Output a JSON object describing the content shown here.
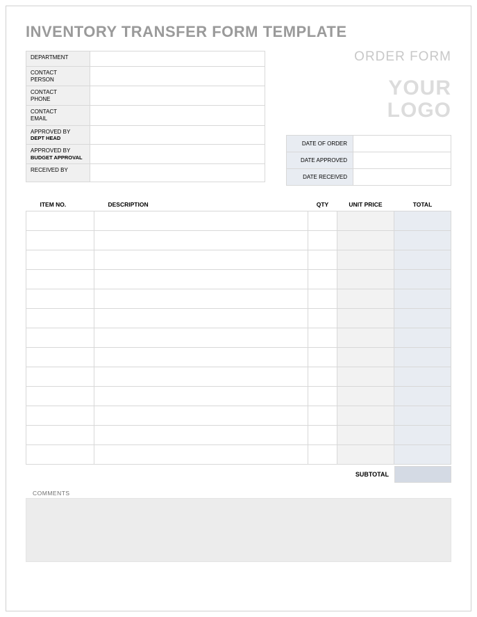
{
  "title": "INVENTORY TRANSFER FORM TEMPLATE",
  "header": {
    "order_form_label": "ORDER FORM",
    "logo_line1": "YOUR",
    "logo_line2": "LOGO"
  },
  "info": {
    "rows": [
      {
        "label": "DEPARTMENT",
        "sub": "",
        "value": "",
        "height": "h1"
      },
      {
        "label": "CONTACT",
        "sub": "PERSON",
        "value": "",
        "height": "h2",
        "sub_plain": true
      },
      {
        "label": "CONTACT",
        "sub": "PHONE",
        "value": "",
        "height": "h2",
        "sub_plain": true
      },
      {
        "label": "CONTACT",
        "sub": "EMAIL",
        "value": "",
        "height": "h2",
        "sub_plain": true
      },
      {
        "label": "APPROVED BY",
        "sub": "DEPT HEAD",
        "value": "",
        "height": "h2"
      },
      {
        "label": "APPROVED BY",
        "sub": "BUDGET APPROVAL",
        "value": "",
        "height": "h2"
      },
      {
        "label": "RECEIVED BY",
        "sub": "",
        "value": "",
        "height": "h2"
      }
    ]
  },
  "dates": {
    "rows": [
      {
        "label": "DATE OF ORDER",
        "value": ""
      },
      {
        "label": "DATE APPROVED",
        "value": ""
      },
      {
        "label": "DATE RECEIVED",
        "value": ""
      }
    ]
  },
  "items": {
    "headers": {
      "item_no": "ITEM NO.",
      "description": "DESCRIPTION",
      "qty": "QTY",
      "unit_price": "UNIT PRICE",
      "total": "TOTAL"
    },
    "row_count": 13,
    "columns": {
      "item_no_width": 98,
      "qty_width": 42,
      "price_width": 82,
      "total_width": 82
    },
    "shaded_columns": {
      "unit_price_bg": "#f2f2f2",
      "total_bg": "#e8ecf2"
    }
  },
  "subtotal": {
    "label": "SUBTOTAL",
    "value": "",
    "bg": "#d4dae4"
  },
  "comments": {
    "label": "COMMENTS",
    "value": "",
    "bg": "#ececec"
  },
  "colors": {
    "border": "#d8d8d8",
    "title": "#9a9a9a",
    "muted": "#c8c8c8",
    "logo": "#dcdcdc",
    "info_label_bg": "#f0f0f0",
    "date_label_bg": "#e8ecf2"
  }
}
